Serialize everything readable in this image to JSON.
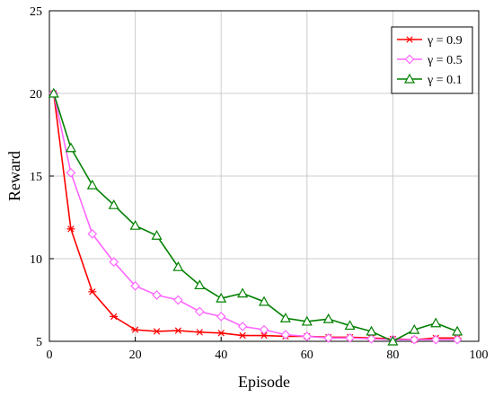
{
  "chart_data": {
    "type": "line",
    "xlabel": "Episode",
    "ylabel": "Reward",
    "xlim": [
      0,
      100
    ],
    "ylim": [
      5,
      25
    ],
    "xticks": [
      0,
      20,
      40,
      60,
      80,
      100
    ],
    "yticks": [
      5,
      10,
      15,
      20,
      25
    ],
    "grid": true,
    "legend_position": "top-right",
    "x": [
      1,
      5,
      10,
      15,
      20,
      25,
      30,
      35,
      40,
      45,
      50,
      55,
      60,
      65,
      70,
      75,
      80,
      85,
      90,
      95
    ],
    "series": [
      {
        "name": "γ = 0.9",
        "color": "#ff0000",
        "marker": "asterisk",
        "values": [
          20.0,
          11.8,
          8.0,
          6.5,
          5.7,
          5.6,
          5.65,
          5.55,
          5.5,
          5.35,
          5.35,
          5.3,
          5.3,
          5.25,
          5.25,
          5.2,
          5.15,
          5.1,
          5.2,
          5.2
        ]
      },
      {
        "name": "γ = 0.5",
        "color": "#ff66ff",
        "marker": "diamond",
        "values": [
          20.0,
          15.2,
          11.5,
          9.8,
          8.35,
          7.8,
          7.5,
          6.8,
          6.5,
          5.9,
          5.7,
          5.4,
          5.3,
          5.2,
          5.2,
          5.15,
          5.1,
          5.1,
          5.1,
          5.1
        ]
      },
      {
        "name": "γ = 0.1",
        "color": "#008000",
        "marker": "triangle",
        "values": [
          20.0,
          16.7,
          14.45,
          13.25,
          12.0,
          11.4,
          9.5,
          8.4,
          7.6,
          7.9,
          7.4,
          6.4,
          6.2,
          6.35,
          5.95,
          5.6,
          5.0,
          5.7,
          6.1,
          5.6
        ]
      }
    ]
  }
}
